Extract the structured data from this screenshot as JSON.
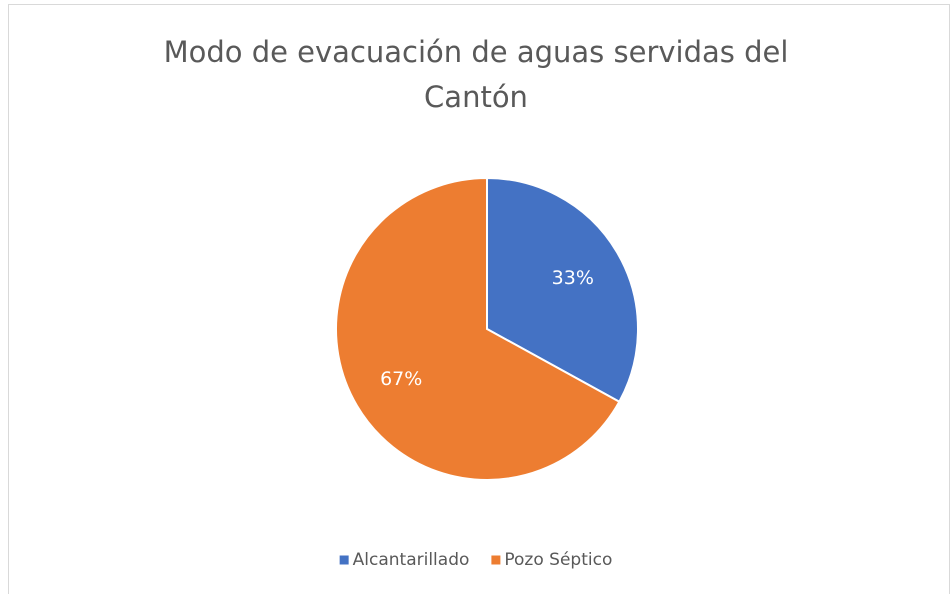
{
  "chart_data": {
    "type": "pie",
    "title": "Modo de evacuación de aguas servidas del Cantón",
    "categories": [
      "Alcantarillado",
      "Pozo Séptico"
    ],
    "values": [
      33,
      67
    ],
    "value_labels": [
      "33%",
      "67%"
    ],
    "colors": [
      "#4472c4",
      "#ed7d31"
    ],
    "legend": "bottom"
  }
}
